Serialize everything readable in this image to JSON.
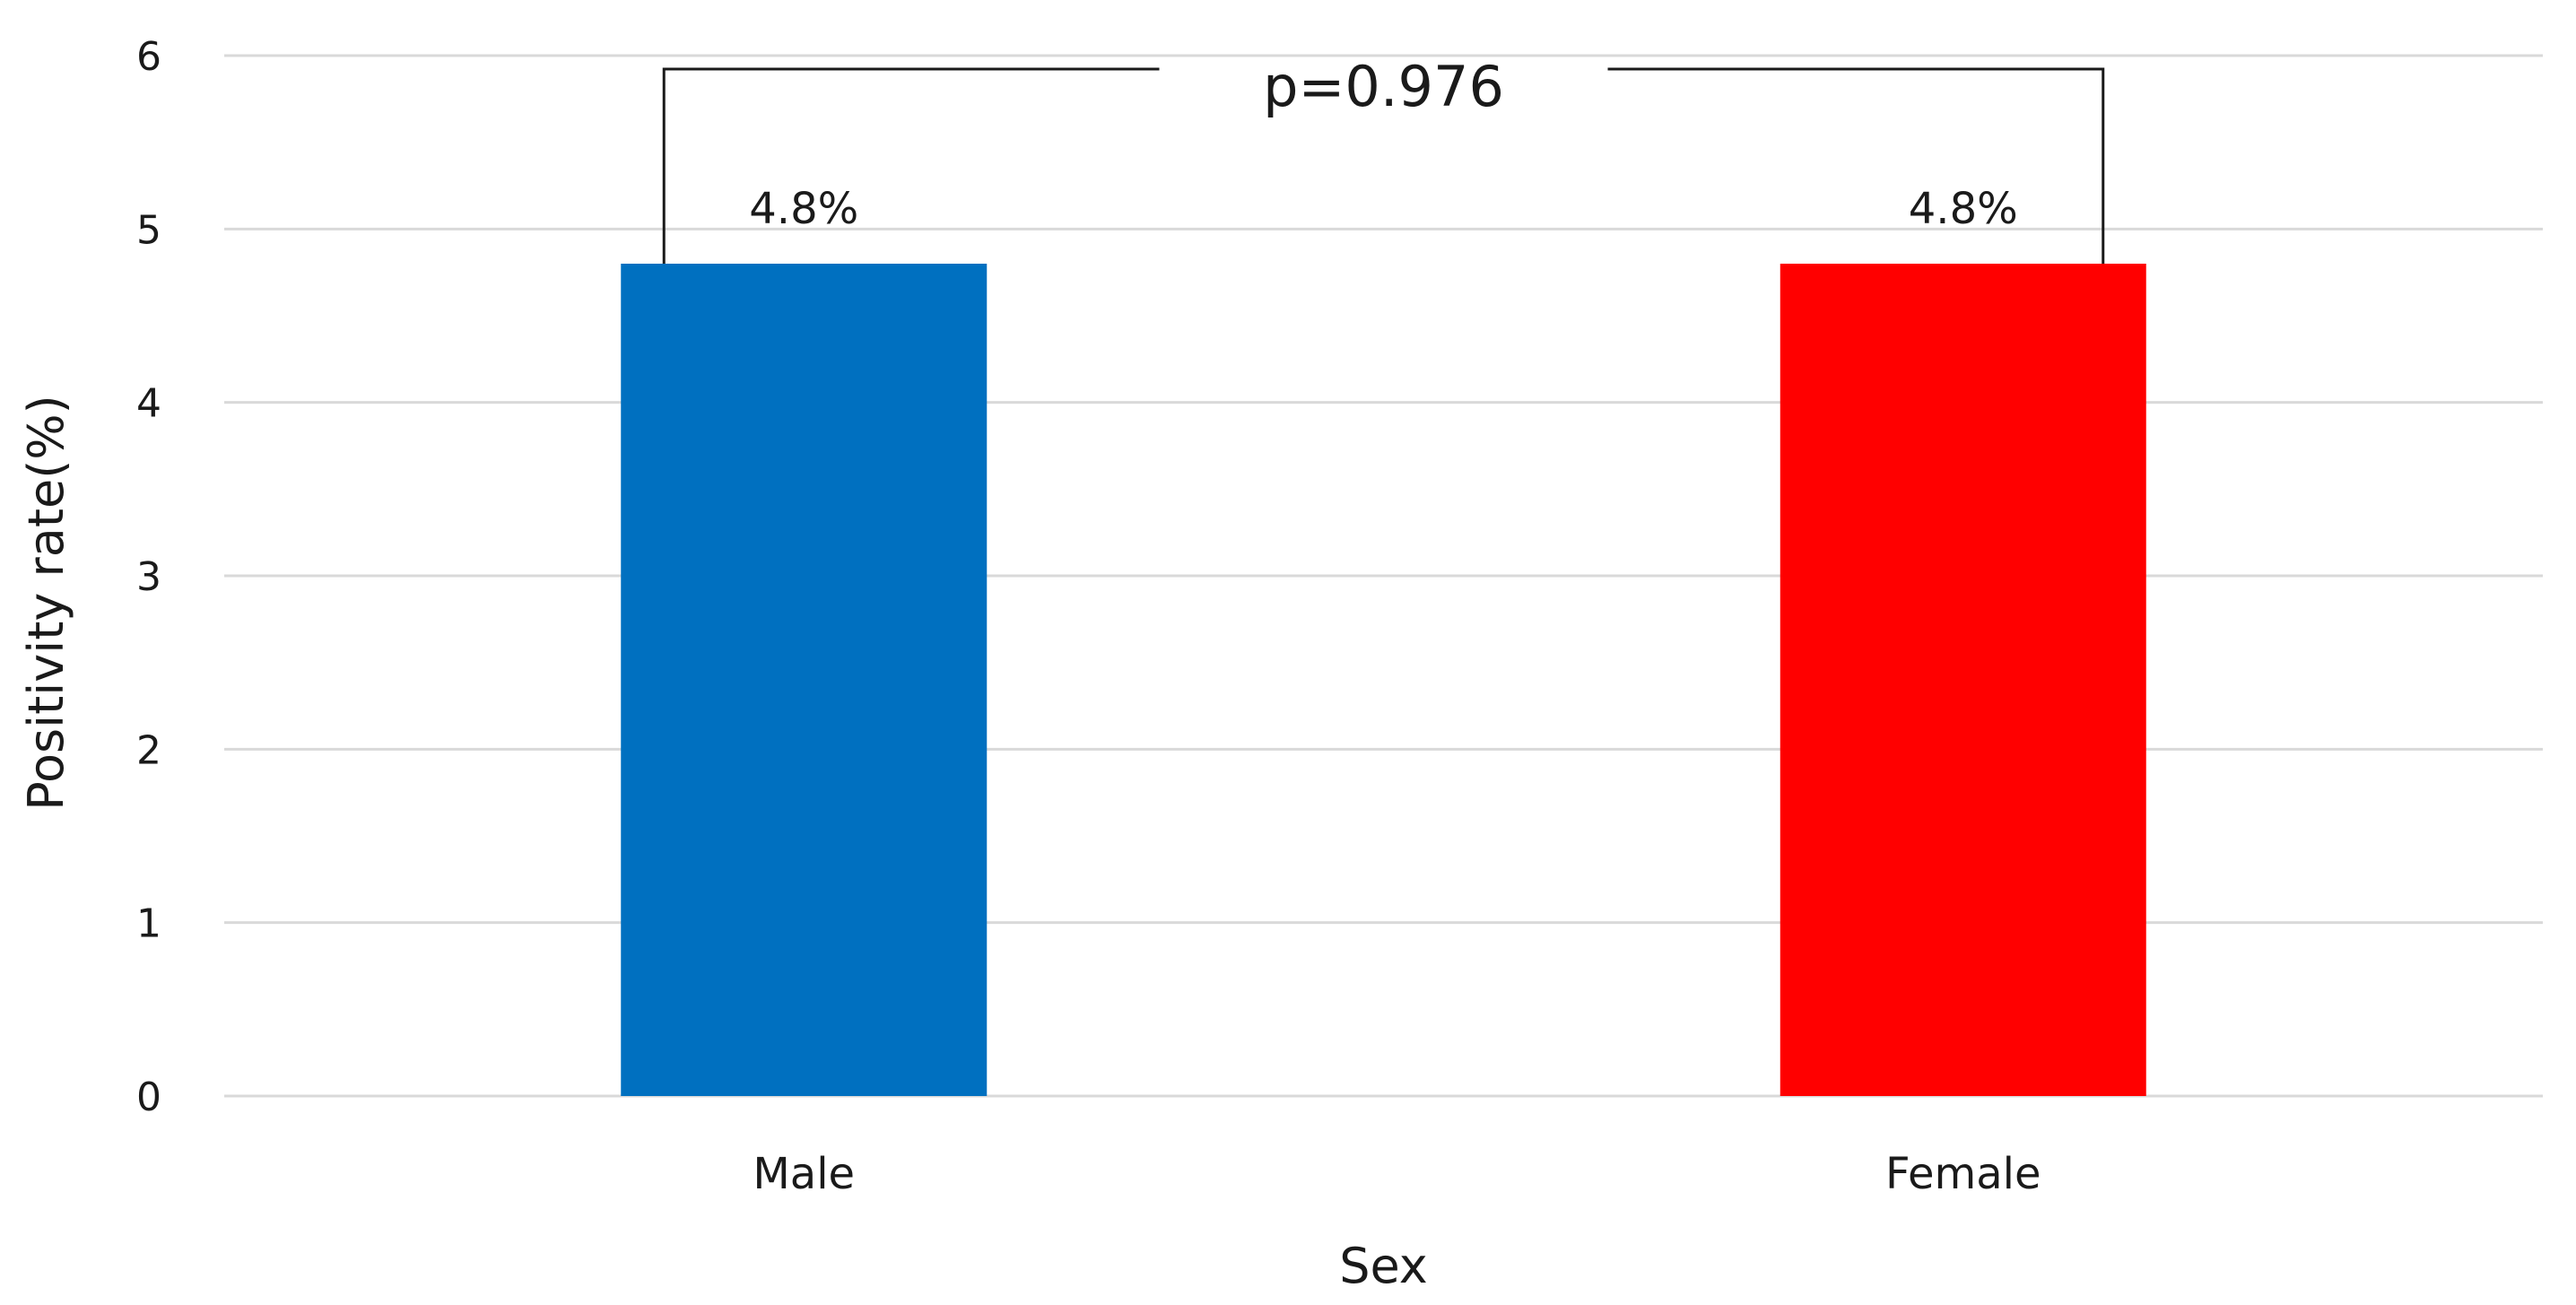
{
  "chart_data": {
    "type": "bar",
    "categories": [
      "Male",
      "Female"
    ],
    "values": [
      4.8,
      4.8
    ],
    "data_labels": [
      "4.8%",
      "4.8%"
    ],
    "colors": [
      "#0070C0",
      "#FF0000"
    ],
    "xlabel": "Sex",
    "ylabel": "Positivity rate(%)",
    "ylim": [
      0,
      6
    ],
    "yticks": [
      0,
      1,
      2,
      3,
      4,
      5,
      6
    ],
    "grid": true,
    "legend": "none",
    "annotation": {
      "text": "p=0.976",
      "type": "significance-bracket",
      "between": [
        "Male",
        "Female"
      ]
    }
  }
}
